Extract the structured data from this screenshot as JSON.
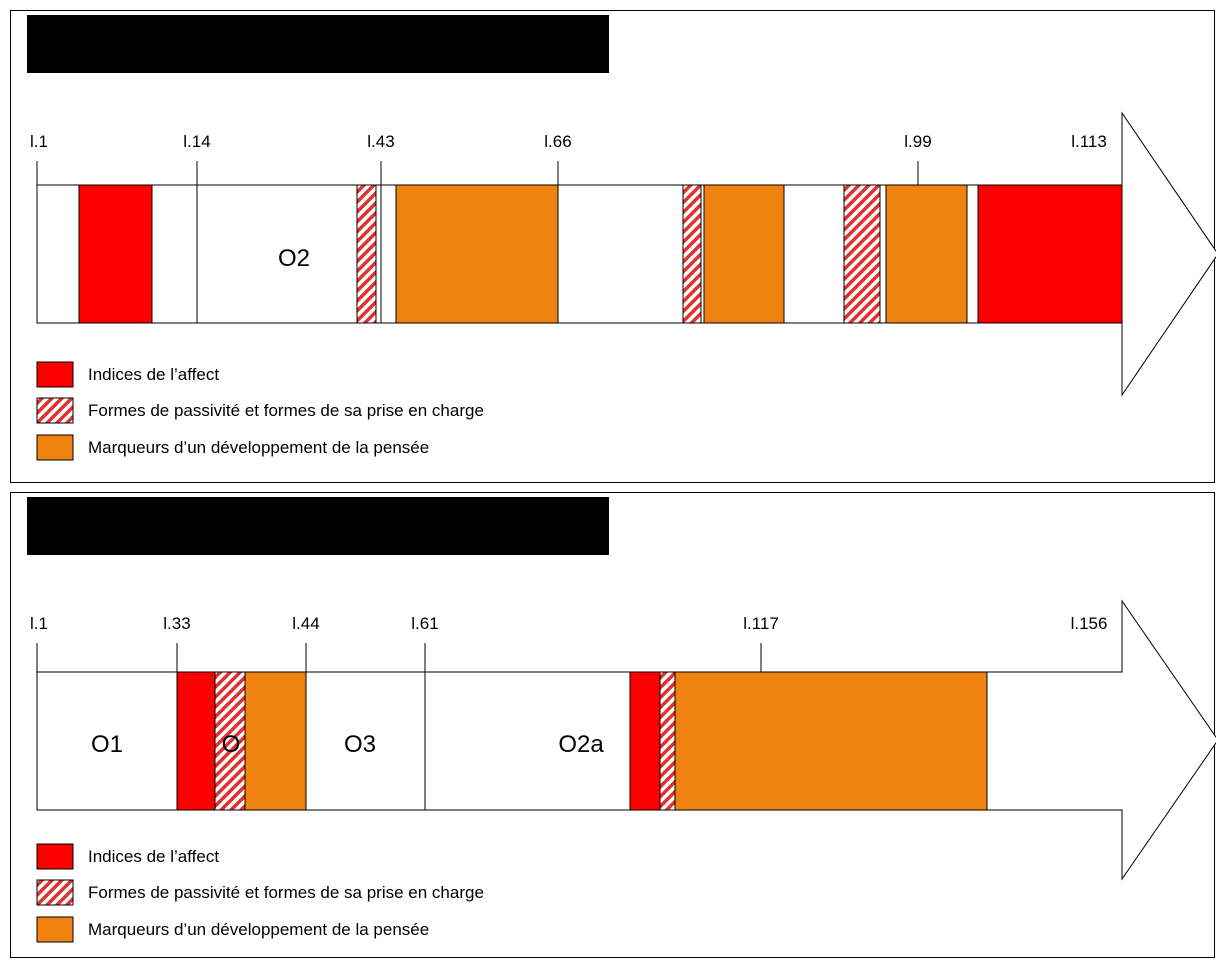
{
  "colors": {
    "affect": "#ff0000",
    "thought": "#f0820f",
    "hatch": "#e03030",
    "line": "#000000"
  },
  "legend": [
    {
      "key": "affect",
      "label": "Indices de l’affect"
    },
    {
      "key": "passivity",
      "label": "Formes de passivité et formes de sa prise en charge"
    },
    {
      "key": "thought",
      "label": "Marqueurs d’un développement de la pensée"
    }
  ],
  "timelines": [
    {
      "ticks": [
        "l.1",
        "l.14",
        "l.43",
        "l.66",
        "l.99",
        "l.113"
      ],
      "regions": [
        "O2"
      ]
    },
    {
      "ticks": [
        "l.1",
        "l.33",
        "l.44",
        "l.61",
        "l.117",
        "l.156"
      ],
      "regions": [
        "O1",
        "O",
        "O3",
        "O2a"
      ]
    }
  ]
}
